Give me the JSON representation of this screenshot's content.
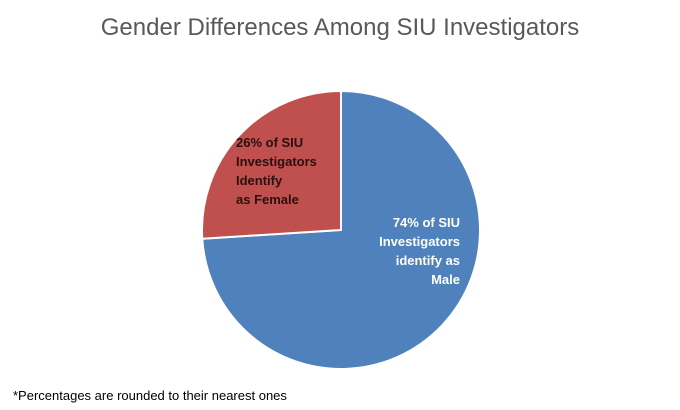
{
  "chart_data": {
    "type": "pie",
    "title": "Gender Differences Among SIU Investigators",
    "slices": [
      {
        "category": "Male",
        "value": 74,
        "color": "#4f81bd",
        "label_lines": [
          "74% of SIU",
          "Investigators",
          "identify as",
          "Male"
        ]
      },
      {
        "category": "Female",
        "value": 26,
        "color": "#c0504d",
        "label_lines": [
          "26% of SIU",
          "Investigators",
          "Identify",
          "as Female"
        ]
      }
    ],
    "start": "12 o'clock",
    "direction": "clockwise"
  },
  "footnote": "*Percentages are rounded to their nearest ones"
}
